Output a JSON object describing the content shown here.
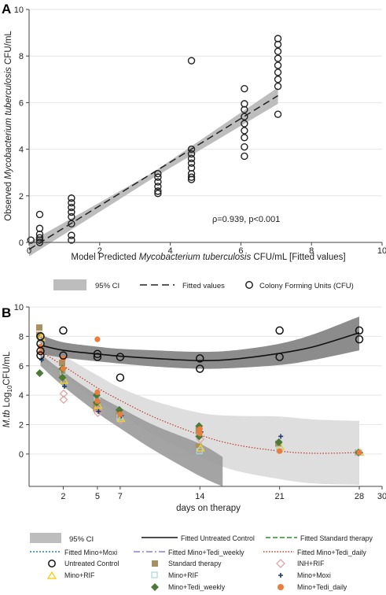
{
  "panels": {
    "a": {
      "label": "A"
    },
    "b": {
      "label": "B"
    }
  },
  "colors": {
    "ci_band": "#bdbdbd",
    "untreated_band": "#8c8c8c",
    "treatment_band": "#dedede",
    "fitted_untreated": "#111111",
    "fitted_standard": "#2e8b2e",
    "fitted_moxi": "#2f7f8f",
    "fitted_tedi_weekly": "#8a7fd0",
    "fitted_tedi_daily": "#c0392b",
    "standard_therapy": "#a89060",
    "inh_rif": "#d9a6a6",
    "mino_rif_marker": "#f2d024",
    "mino_rif_square": "#a9d7e0",
    "mino_tedi_weekly": "#4d7a3a",
    "mino_moxi": "#1f3a6b",
    "mino_tedi_daily": "#e87d3e"
  },
  "chart_data": [
    {
      "type": "scatter",
      "panel": "A",
      "xlabel": {
        "pre": "Model Predicted ",
        "italic": "Mycobacterium tuberculosis",
        "post": " CFU/mL [Fitted values]"
      },
      "ylabel": {
        "pre": "Observed ",
        "italic": "Mycobacterium tuberculosis",
        "post": " CFU/mL"
      },
      "xlim": [
        0,
        10
      ],
      "ylim": [
        0,
        10
      ],
      "xticks": [
        0,
        2,
        4,
        6,
        8,
        10
      ],
      "yticks": [
        0,
        2,
        4,
        6,
        8,
        10
      ],
      "annotation": "ρ=0.939, p<0.001",
      "legend_position": "bottom",
      "legend": [
        "95% CI",
        "Fitted values",
        "Colony Forming Units (CFU)"
      ],
      "fit": {
        "x": [
          0,
          7.05
        ],
        "y": [
          -0.3,
          6.3
        ]
      },
      "ci": {
        "x": [
          0,
          3.5,
          7.05
        ],
        "lower": [
          -0.6,
          2.75,
          5.95
        ],
        "upper": [
          0.0,
          3.0,
          6.65
        ]
      },
      "points": [
        [
          0.05,
          0.1
        ],
        [
          0.3,
          0.0
        ],
        [
          0.3,
          0.1
        ],
        [
          0.3,
          0.2
        ],
        [
          0.3,
          0.35
        ],
        [
          0.3,
          0.6
        ],
        [
          0.3,
          1.2
        ],
        [
          1.2,
          0.1
        ],
        [
          1.2,
          0.3
        ],
        [
          1.2,
          0.8
        ],
        [
          1.2,
          1.1
        ],
        [
          1.2,
          1.3
        ],
        [
          1.2,
          1.5
        ],
        [
          1.2,
          1.7
        ],
        [
          1.2,
          1.9
        ],
        [
          3.65,
          2.1
        ],
        [
          3.65,
          2.2
        ],
        [
          3.65,
          2.4
        ],
        [
          3.65,
          2.6
        ],
        [
          3.65,
          2.8
        ],
        [
          3.65,
          2.95
        ],
        [
          4.6,
          2.7
        ],
        [
          4.6,
          2.8
        ],
        [
          4.6,
          2.95
        ],
        [
          4.6,
          3.2
        ],
        [
          4.6,
          3.4
        ],
        [
          4.6,
          3.6
        ],
        [
          4.6,
          3.8
        ],
        [
          4.6,
          4.0
        ],
        [
          4.6,
          7.8
        ],
        [
          6.1,
          3.7
        ],
        [
          6.1,
          4.1
        ],
        [
          6.1,
          4.5
        ],
        [
          6.1,
          4.8
        ],
        [
          6.1,
          5.1
        ],
        [
          6.1,
          5.4
        ],
        [
          6.1,
          5.7
        ],
        [
          6.1,
          5.95
        ],
        [
          6.1,
          6.6
        ],
        [
          7.05,
          5.5
        ],
        [
          7.05,
          6.7
        ],
        [
          7.05,
          7.0
        ],
        [
          7.05,
          7.3
        ],
        [
          7.05,
          7.6
        ],
        [
          7.05,
          7.9
        ],
        [
          7.05,
          8.2
        ],
        [
          7.05,
          8.5
        ],
        [
          7.05,
          8.75
        ]
      ]
    },
    {
      "type": "scatter",
      "panel": "B",
      "xlabel": "days on therapy",
      "ylabel": {
        "italic": "M.tb",
        "pre": " Log",
        "sub": "10",
        "post": "CFU/mL"
      },
      "xlim": [
        -1,
        30
      ],
      "ylim": [
        -2.2,
        10
      ],
      "xticks": [
        2,
        5,
        7,
        14,
        21,
        28,
        30
      ],
      "yticks": [
        0,
        2,
        4,
        6,
        8,
        10
      ],
      "legend_position": "bottom",
      "legend": [
        "95% CI",
        "Fitted Untreated Control",
        "Fitted Standard therapy",
        "Fitted Mino+Moxi",
        "Fitted Mino+Tedi_weekly",
        "Fitted Mino+Tedi_daily",
        "Untreated Control",
        "Standard therapy",
        "INH+RIF",
        "Mino+RIF",
        "Mino+RIF",
        "Mino+Moxi",
        "Mino+Tedi_weekly",
        "Mino+Tedi_daily"
      ],
      "untreated_fit": {
        "x": [
          0,
          2,
          5,
          7,
          10,
          14,
          17,
          21,
          24,
          28
        ],
        "y": [
          7.4,
          7.05,
          6.8,
          6.65,
          6.5,
          6.35,
          6.45,
          6.85,
          7.3,
          8.25
        ],
        "lower": [
          6.8,
          6.55,
          6.3,
          6.15,
          5.95,
          5.8,
          5.85,
          6.05,
          6.4,
          7.05
        ],
        "upper": [
          8.1,
          7.6,
          7.3,
          7.15,
          7.05,
          6.95,
          7.05,
          7.5,
          8.15,
          9.35
        ]
      },
      "daily_fit": {
        "x": [
          0,
          2,
          5,
          7,
          10,
          14,
          17,
          21,
          24,
          28
        ],
        "y": [
          7.0,
          6.0,
          4.5,
          3.65,
          2.5,
          1.3,
          0.65,
          0.2,
          0.05,
          0.1
        ],
        "lower": [
          6.4,
          5.3,
          3.6,
          2.7,
          1.3,
          -0.2,
          -1.1,
          -1.7,
          -2.0,
          -2.1
        ],
        "upper": [
          7.6,
          6.7,
          5.35,
          4.5,
          3.6,
          2.8,
          2.6,
          2.55,
          2.35,
          2.25
        ]
      },
      "standard_fit": {
        "x": [
          0,
          2,
          5,
          7,
          10,
          14,
          16
        ],
        "y": [
          6.4,
          5.1,
          3.4,
          2.45,
          1.1,
          -0.4,
          -1.2
        ],
        "lower": [
          6.0,
          4.6,
          2.8,
          1.75,
          0.25,
          -1.5,
          -2.2
        ],
        "upper": [
          6.8,
          5.6,
          4.0,
          3.15,
          1.95,
          0.7,
          -0.2
        ]
      },
      "series": [
        {
          "name": "Untreated Control",
          "marker": "circle",
          "points": [
            [
              0,
              7.5
            ],
            [
              0,
              7.0
            ],
            [
              0,
              6.7
            ],
            [
              0,
              8.0
            ],
            [
              2,
              8.4
            ],
            [
              2,
              6.7
            ],
            [
              5,
              6.8
            ],
            [
              5,
              6.6
            ],
            [
              7,
              6.6
            ],
            [
              7,
              5.2
            ],
            [
              14,
              6.5
            ],
            [
              14,
              5.8
            ],
            [
              21,
              8.4
            ],
            [
              21,
              6.6
            ],
            [
              28,
              8.4
            ],
            [
              28,
              7.8
            ]
          ]
        },
        {
          "name": "Standard therapy",
          "marker": "square",
          "points": [
            [
              0,
              8.6
            ],
            [
              0,
              8.1
            ],
            [
              2,
              6.2
            ],
            [
              2,
              5.5
            ],
            [
              5,
              3.5
            ],
            [
              5,
              3.1
            ],
            [
              7,
              2.7
            ],
            [
              14,
              1.6
            ],
            [
              14,
              0.5
            ],
            [
              21,
              0.7
            ],
            [
              28,
              0.1
            ]
          ]
        },
        {
          "name": "INH+RIF",
          "marker": "diamond-open",
          "points": [
            [
              0,
              7.8
            ],
            [
              2,
              4.1
            ],
            [
              2,
              3.7
            ],
            [
              5,
              3.0
            ],
            [
              5,
              2.8
            ],
            [
              7,
              2.3
            ],
            [
              14,
              1.0
            ],
            [
              14,
              0.3
            ]
          ]
        },
        {
          "name": "Mino+RIF",
          "marker": "triangle-open",
          "points": [
            [
              0,
              7.9
            ],
            [
              2,
              5.0
            ],
            [
              5,
              3.3
            ],
            [
              7,
              2.4
            ],
            [
              14,
              0.4
            ],
            [
              21,
              0.5
            ],
            [
              28,
              0.1
            ]
          ]
        },
        {
          "name": "Mino+RIF",
          "marker": "square-open",
          "points": [
            [
              0,
              7.6
            ],
            [
              2,
              5.6
            ],
            [
              5,
              3.7
            ],
            [
              7,
              2.5
            ],
            [
              14,
              0.2
            ],
            [
              21,
              0.3
            ],
            [
              28,
              0.1
            ]
          ]
        },
        {
          "name": "Mino+Moxi",
          "marker": "plus",
          "points": [
            [
              0,
              6.4
            ],
            [
              2,
              4.6
            ],
            [
              5,
              2.9
            ],
            [
              7,
              2.6
            ],
            [
              14,
              1.5
            ],
            [
              21,
              1.2
            ],
            [
              28,
              0.1
            ]
          ]
        },
        {
          "name": "Mino+Tedi_weekly",
          "marker": "diamond",
          "points": [
            [
              0,
              5.5
            ],
            [
              2,
              5.8
            ],
            [
              2,
              5.2
            ],
            [
              5,
              4.0
            ],
            [
              5,
              3.5
            ],
            [
              7,
              3.0
            ],
            [
              14,
              1.9
            ],
            [
              14,
              1.2
            ],
            [
              21,
              0.8
            ],
            [
              28,
              0.1
            ]
          ]
        },
        {
          "name": "Mino+Tedi_daily",
          "marker": "circle-filled",
          "points": [
            [
              0,
              7.3
            ],
            [
              0,
              6.9
            ],
            [
              2,
              6.5
            ],
            [
              2,
              5.8
            ],
            [
              5,
              7.8
            ],
            [
              5,
              4.2
            ],
            [
              5,
              3.6
            ],
            [
              7,
              2.7
            ],
            [
              14,
              1.7
            ],
            [
              14,
              1.4
            ],
            [
              21,
              0.2
            ],
            [
              28,
              0.1
            ]
          ]
        }
      ]
    }
  ]
}
